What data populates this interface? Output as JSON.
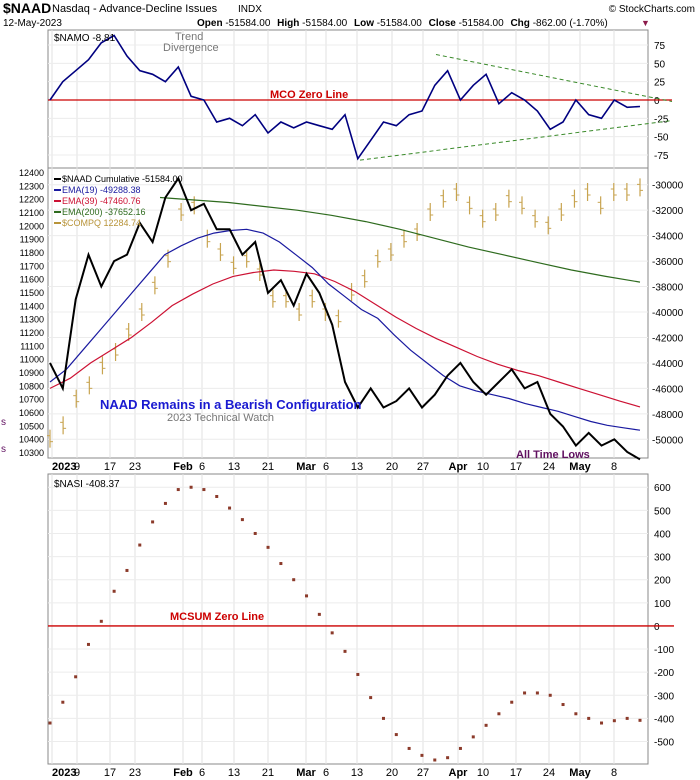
{
  "header": {
    "symbol": "$NAAD",
    "name": "Nasdaq - Advance-Decline Issues",
    "exchange": "INDX",
    "watermark": "© StockCharts.com",
    "date": "12-May-2023",
    "open_label": "Open",
    "open": "-51584.00",
    "high_label": "High",
    "high": "-51584.00",
    "low_label": "Low",
    "low": "-51584.00",
    "close_label": "Close",
    "close": "-51584.00",
    "chg_label": "Chg",
    "chg": "-862.00 (-1.70%)"
  },
  "colors": {
    "namo": "#000080",
    "naad": "#000000",
    "ema19": "#1a1aa0",
    "ema39": "#cc1133",
    "ema200": "#2e6b1e",
    "compq": "#c8a450",
    "nasi": "#8b3a2a",
    "zero": "#cc0000",
    "trend": "#3a8a2a"
  },
  "x_axis": {
    "labels": [
      "2023",
      "9",
      "17",
      "23",
      "Feb",
      "6",
      "13",
      "21",
      "Mar",
      "6",
      "13",
      "20",
      "27",
      "Apr",
      "10",
      "17",
      "24",
      "May",
      "8"
    ]
  },
  "panel1": {
    "legend": "$NAMO -8.81",
    "annotation": [
      "Trend",
      "Divergence"
    ],
    "zero_label": "MCO Zero Line",
    "y_ticks": [
      "75",
      "50",
      "25",
      "0",
      "-25",
      "-50",
      "-75"
    ]
  },
  "panel2": {
    "legend": [
      {
        "label": "$NAAD Cumulative -51584.00",
        "color": "#000000"
      },
      {
        "label": "EMA(19) -49288.38",
        "color": "#1a1aa0"
      },
      {
        "label": "EMA(39) -47460.76",
        "color": "#cc1133"
      },
      {
        "label": "EMA(200) -37652.16",
        "color": "#2e6b1e"
      },
      {
        "label": "$COMPQ 12284.74",
        "color": "#b8943a"
      }
    ],
    "title_annotation": "NAAD Remains in a Bearish Configuration",
    "sub_annotation": "2023 Technical Watch",
    "low_annotation": "All Time Lows",
    "side_label": "s",
    "side_label2": "s",
    "left_ticks": [
      "12400",
      "12300",
      "12200",
      "12100",
      "12000",
      "11900",
      "11800",
      "11700",
      "11600",
      "11500",
      "11400",
      "11300",
      "11200",
      "11100",
      "11000",
      "10900",
      "10800",
      "10700",
      "10600",
      "10500",
      "10400",
      "10300"
    ],
    "right_ticks": [
      "-30000",
      "-32000",
      "-34000",
      "-36000",
      "-38000",
      "-40000",
      "-42000",
      "-44000",
      "-46000",
      "-48000",
      "-50000"
    ]
  },
  "panel3": {
    "legend": "$NASI -408.37",
    "zero_label": "MCSUM Zero Line",
    "y_ticks": [
      "600",
      "500",
      "400",
      "300",
      "200",
      "100",
      "0",
      "-100",
      "-200",
      "-300",
      "-400",
      "-500"
    ]
  },
  "chart_data": [
    {
      "type": "line",
      "name": "$NAMO",
      "ylim": [
        -90,
        90
      ],
      "x": [
        "Jan 3",
        "Jan 5",
        "Jan 9",
        "Jan 11",
        "Jan 13",
        "Jan 17",
        "Jan 19",
        "Jan 23",
        "Jan 25",
        "Jan 27",
        "Jan 31",
        "Feb 2",
        "Feb 6",
        "Feb 8",
        "Feb 10",
        "Feb 14",
        "Feb 16",
        "Feb 21",
        "Feb 23",
        "Feb 27",
        "Mar 1",
        "Mar 3",
        "Mar 7",
        "Mar 9",
        "Mar 13",
        "Mar 15",
        "Mar 17",
        "Mar 21",
        "Mar 23",
        "Mar 27",
        "Mar 29",
        "Mar 31",
        "Apr 4",
        "Apr 6",
        "Apr 11",
        "Apr 13",
        "Apr 17",
        "Apr 19",
        "Apr 21",
        "Apr 25",
        "Apr 27",
        "May 1",
        "May 3",
        "May 5",
        "May 9",
        "May 11",
        "May 12"
      ],
      "values": [
        0,
        25,
        40,
        55,
        78,
        88,
        60,
        40,
        35,
        25,
        45,
        5,
        0,
        -30,
        -25,
        -35,
        -20,
        -45,
        -30,
        -38,
        -30,
        -35,
        -40,
        -20,
        -80,
        -55,
        -30,
        -35,
        -20,
        -15,
        20,
        40,
        0,
        20,
        35,
        -5,
        10,
        0,
        -15,
        -40,
        -30,
        0,
        -20,
        -25,
        0,
        -10,
        -8.81
      ]
    },
    {
      "type": "line",
      "name": "$NAAD Cumulative",
      "ylim": [
        -51000,
        -29000
      ],
      "x": [
        "Jan 3",
        "Jan 5",
        "Jan 9",
        "Jan 11",
        "Jan 13",
        "Jan 17",
        "Jan 19",
        "Jan 23",
        "Jan 25",
        "Jan 27",
        "Jan 31",
        "Feb 2",
        "Feb 6",
        "Feb 8",
        "Feb 10",
        "Feb 14",
        "Feb 16",
        "Feb 21",
        "Feb 23",
        "Feb 27",
        "Mar 1",
        "Mar 3",
        "Mar 7",
        "Mar 9",
        "Mar 13",
        "Mar 15",
        "Mar 17",
        "Mar 21",
        "Mar 23",
        "Mar 27",
        "Mar 29",
        "Mar 31",
        "Apr 4",
        "Apr 6",
        "Apr 11",
        "Apr 13",
        "Apr 17",
        "Apr 19",
        "Apr 21",
        "Apr 25",
        "Apr 27",
        "May 1",
        "May 3",
        "May 5",
        "May 9",
        "May 11",
        "May 12"
      ],
      "values": [
        -44000,
        -46000,
        -39000,
        -35500,
        -38000,
        -36000,
        -35500,
        -33000,
        -34500,
        -31000,
        -29500,
        -32000,
        -31500,
        -33500,
        -33500,
        -35500,
        -34500,
        -38500,
        -37500,
        -39500,
        -37000,
        -38500,
        -41000,
        -45500,
        -47500,
        -46000,
        -47500,
        -47000,
        -46000,
        -47500,
        -46500,
        -45000,
        -44000,
        -45500,
        -46500,
        -45500,
        -44500,
        -46000,
        -45500,
        -48000,
        -49000,
        -50500,
        -49500,
        -50500,
        -50000,
        -51000,
        -51584
      ]
    },
    {
      "type": "line",
      "name": "EMA(19)",
      "values_note": "",
      "values": [
        -45500,
        -44500,
        -43000,
        -41500,
        -40000,
        -38500,
        -37000,
        -35500,
        -34800,
        -34200,
        -33800,
        -33600,
        -33500,
        -33800,
        -34500,
        -35500,
        -36500,
        -37800,
        -38800,
        -39800,
        -40500,
        -41800,
        -43000,
        -44000,
        -45000,
        -45800,
        -46200,
        -46500,
        -46800,
        -47200,
        -47500,
        -47800,
        -48200,
        -48600,
        -48900,
        -49100,
        -49288
      ]
    },
    {
      "type": "line",
      "name": "EMA(39)",
      "values": [
        -46000,
        -45200,
        -44000,
        -43000,
        -42000,
        -40800,
        -39500,
        -38600,
        -37800,
        -37200,
        -36900,
        -36700,
        -36800,
        -37000,
        -37600,
        -38400,
        -39400,
        -40400,
        -41300,
        -42100,
        -42800,
        -43500,
        -44100,
        -44600,
        -45000,
        -45500,
        -46000,
        -46500,
        -47000,
        -47460
      ]
    },
    {
      "type": "line",
      "name": "EMA(200)",
      "values": [
        -31000,
        -31200,
        -31400,
        -31700,
        -32000,
        -32400,
        -32900,
        -33500,
        -34200,
        -34900,
        -35500,
        -36100,
        -36700,
        -37200,
        -37652
      ]
    },
    {
      "type": "line",
      "name": "$COMPQ",
      "ylim": [
        10300,
        12400
      ],
      "values": [
        10400,
        10500,
        10700,
        10800,
        10950,
        11050,
        11200,
        11350,
        11550,
        11750,
        12100,
        12150,
        11900,
        11800,
        11700,
        11750,
        11650,
        11450,
        11450,
        11350,
        11450,
        11350,
        11300,
        11500,
        11600,
        11750,
        11800,
        11900,
        11950,
        12100,
        12200,
        12250,
        12150,
        12050,
        12100,
        12200,
        12150,
        12050,
        12000,
        12100,
        12200,
        12250,
        12150,
        12250,
        12250,
        12284.74
      ]
    },
    {
      "type": "scatter",
      "name": "$NASI",
      "ylim": [
        -580,
        640
      ],
      "values": [
        -420,
        -330,
        -220,
        -80,
        20,
        150,
        240,
        350,
        450,
        530,
        590,
        600,
        590,
        560,
        510,
        460,
        400,
        340,
        270,
        200,
        130,
        50,
        -30,
        -110,
        -210,
        -310,
        -400,
        -470,
        -530,
        -560,
        -580,
        -570,
        -530,
        -480,
        -430,
        -380,
        -330,
        -290,
        -290,
        -300,
        -340,
        -380,
        -400,
        -420,
        -410,
        -400,
        -408.37
      ]
    }
  ]
}
